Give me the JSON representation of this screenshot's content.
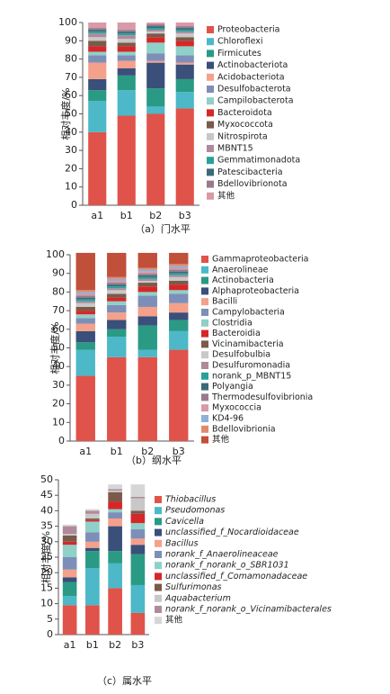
{
  "chart_data": [
    {
      "type": "bar",
      "stacked": true,
      "caption": "（a）门水平",
      "y_label": "相对丰度/%",
      "categories": [
        "a1",
        "b1",
        "b2",
        "b3"
      ],
      "ylim": [
        0,
        100
      ],
      "yticks": [
        0,
        10,
        20,
        30,
        40,
        50,
        60,
        70,
        80,
        90,
        100
      ],
      "series": [
        {
          "name": "Proteobacteria",
          "color": "#e0534a",
          "values": [
            40,
            49,
            50,
            53
          ]
        },
        {
          "name": "Chloroflexi",
          "color": "#4cb8c8",
          "values": [
            17,
            14,
            4,
            9
          ]
        },
        {
          "name": "Firmicutes",
          "color": "#2a9a84",
          "values": [
            6,
            8,
            10,
            7
          ]
        },
        {
          "name": "Actinobacteriota",
          "color": "#3a4f7a",
          "values": [
            6,
            4,
            14,
            8
          ]
        },
        {
          "name": "Acidobacteriota",
          "color": "#f4a08a",
          "values": [
            9,
            4,
            1,
            1
          ]
        },
        {
          "name": "Desulfobacterota",
          "color": "#7d8fb8",
          "values": [
            4,
            3,
            4,
            4
          ]
        },
        {
          "name": "Campilobacterota",
          "color": "#8fd0c8",
          "values": [
            2,
            2,
            6,
            5
          ]
        },
        {
          "name": "Bacteroidota",
          "color": "#d62728",
          "values": [
            3,
            3,
            3,
            3
          ]
        },
        {
          "name": "Myxococcota",
          "color": "#7a5a4a",
          "values": [
            3,
            2,
            2,
            2
          ]
        },
        {
          "name": "Nitrospirota",
          "color": "#c8c8c8",
          "values": [
            2,
            2,
            1,
            2
          ]
        },
        {
          "name": "MBNT15",
          "color": "#b08a9a",
          "values": [
            2,
            2,
            1,
            1
          ]
        },
        {
          "name": "Gemmatimonadota",
          "color": "#2aa09a",
          "values": [
            1,
            1,
            1,
            1
          ]
        },
        {
          "name": "Patescibacteria",
          "color": "#3a6a7a",
          "values": [
            1,
            1,
            1,
            1
          ]
        },
        {
          "name": "Bdellovibrionota",
          "color": "#9a7a8a",
          "values": [
            1,
            1,
            1,
            1
          ]
        },
        {
          "name": "其他",
          "color": "#d89aa8",
          "values": [
            3,
            4,
            1,
            2
          ]
        }
      ]
    },
    {
      "type": "bar",
      "stacked": true,
      "caption": "（b）纲水平",
      "y_label": "相对丰度/%",
      "categories": [
        "a1",
        "b1",
        "b2",
        "b3"
      ],
      "ylim": [
        0,
        100
      ],
      "yticks": [
        0,
        10,
        20,
        30,
        40,
        50,
        60,
        70,
        80,
        90,
        100
      ],
      "series": [
        {
          "name": "Gammaproteobacteria",
          "color": "#e0534a",
          "values": [
            35,
            45,
            45,
            49
          ]
        },
        {
          "name": "Anaerolineae",
          "color": "#4cb8c8",
          "values": [
            14,
            11,
            4,
            10
          ]
        },
        {
          "name": "Actinobacteria",
          "color": "#2a9a84",
          "values": [
            4,
            4,
            13,
            6
          ]
        },
        {
          "name": "Alphaproteobacteria",
          "color": "#3a4f7a",
          "values": [
            6,
            5,
            5,
            4
          ]
        },
        {
          "name": "Bacilli",
          "color": "#f4a08a",
          "values": [
            4,
            4,
            5,
            5
          ]
        },
        {
          "name": "Campylobacteria",
          "color": "#7d8fb8",
          "values": [
            3,
            4,
            6,
            5
          ]
        },
        {
          "name": "Clostridia",
          "color": "#8fd0c8",
          "values": [
            2,
            2,
            2,
            2
          ]
        },
        {
          "name": "Bacteroidia",
          "color": "#d62728",
          "values": [
            2,
            2,
            3,
            3
          ]
        },
        {
          "name": "Vicinamibacteria",
          "color": "#7a5a4a",
          "values": [
            2,
            2,
            2,
            2
          ]
        },
        {
          "name": "Desulfobulbia",
          "color": "#c8c8c8",
          "values": [
            2,
            2,
            1,
            2
          ]
        },
        {
          "name": "Desulfuromonadia",
          "color": "#b08a9a",
          "values": [
            1,
            1,
            1,
            1
          ]
        },
        {
          "name": "norank_p_MBNT15",
          "color": "#2aa09a",
          "values": [
            1,
            1,
            1,
            1
          ]
        },
        {
          "name": "Polyangia",
          "color": "#3a6a7a",
          "values": [
            1,
            1,
            1,
            1
          ]
        },
        {
          "name": "Thermodesulfovibrionia",
          "color": "#9a7a8a",
          "values": [
            1,
            1,
            1,
            1
          ]
        },
        {
          "name": "Myxococcia",
          "color": "#d89aa8",
          "values": [
            1,
            1,
            1,
            1
          ]
        },
        {
          "name": "KD4-96",
          "color": "#8fb0d8",
          "values": [
            1,
            1,
            1,
            1
          ]
        },
        {
          "name": "Bdellovibrionia",
          "color": "#e08a6a",
          "values": [
            1,
            1,
            1,
            1
          ]
        },
        {
          "name": "其他",
          "color": "#c0503a",
          "values": [
            20,
            13,
            8,
            6
          ]
        }
      ]
    },
    {
      "type": "bar",
      "stacked": true,
      "caption": "（c）属水平",
      "y_label": "相对丰度/%",
      "categories": [
        "a1",
        "b1",
        "b2",
        "b3"
      ],
      "ylim": [
        0,
        50
      ],
      "yticks": [
        0,
        5,
        10,
        15,
        20,
        25,
        30,
        35,
        40,
        45,
        50
      ],
      "series": [
        {
          "name": "Thiobacillus",
          "color": "#e0534a",
          "values": [
            9.5,
            9.5,
            15,
            7
          ]
        },
        {
          "name": "Pseudomonas",
          "color": "#4cb8c8",
          "values": [
            3,
            12,
            8,
            9
          ]
        },
        {
          "name": "Cavicella",
          "color": "#2a9a84",
          "values": [
            4.5,
            5.5,
            4,
            10
          ]
        },
        {
          "name": "unclassified_f_Nocardioidaceae",
          "color": "#3a4f7a",
          "values": [
            1.5,
            1,
            8,
            3
          ]
        },
        {
          "name": "Bacillus",
          "color": "#f4a08a",
          "values": [
            2.5,
            2,
            2.5,
            2
          ]
        },
        {
          "name": "norank_f_Anaerolineaceae",
          "color": "#7d8fb8",
          "values": [
            4,
            3,
            2,
            3
          ]
        },
        {
          "name": "norank_f_norank_o_SBR1031",
          "color": "#8fd0c8",
          "values": [
            4,
            3.5,
            1,
            2
          ]
        },
        {
          "name": "unclassified_f_Comamonadaceae",
          "color": "#d62728",
          "values": [
            1,
            0.5,
            2.5,
            3
          ]
        },
        {
          "name": "Sulfurimonas",
          "color": "#7a5a4a",
          "values": [
            2,
            0.5,
            3,
            1
          ]
        },
        {
          "name": "Aquabacterium",
          "color": "#c8c8c8",
          "values": [
            0.5,
            1.5,
            0.5,
            4
          ]
        },
        {
          "name": "norank_f_norank_o_Vicinamibacterales",
          "color": "#b08a9a",
          "values": [
            2.5,
            1,
            0.5,
            0.5
          ]
        },
        {
          "name": "其他",
          "color": "#d6d6d6",
          "values": [
            0.5,
            0.5,
            1.5,
            4
          ]
        }
      ]
    }
  ]
}
